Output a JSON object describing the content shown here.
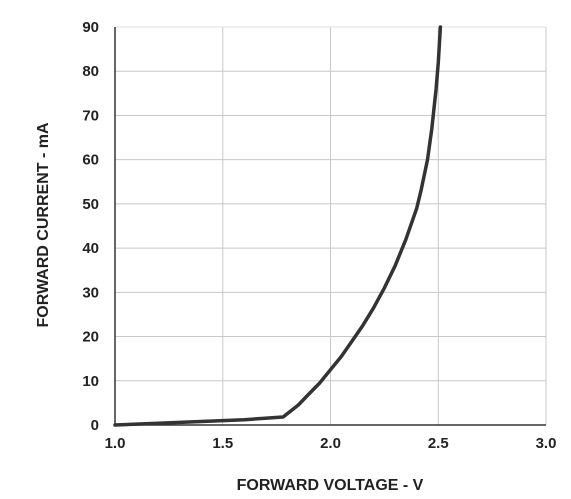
{
  "chart_data": {
    "type": "line",
    "title": "",
    "xlabel": "FORWARD VOLTAGE - V",
    "ylabel": "FORWARD CURRENT - mA",
    "xlim": [
      1.0,
      3.0
    ],
    "ylim": [
      0,
      90
    ],
    "x_ticks": [
      "1.0",
      "1.5",
      "2.0",
      "2.5",
      "3.0"
    ],
    "y_ticks": [
      "0",
      "10",
      "20",
      "30",
      "40",
      "50",
      "60",
      "70",
      "80",
      "90"
    ],
    "grid": true,
    "legend": "none",
    "line_color": "#333333",
    "grid_color": "#c8c8c8",
    "series": [
      {
        "x": [
          1.0,
          1.2,
          1.4,
          1.6,
          1.78,
          1.85,
          1.9,
          1.95,
          2.0,
          2.05,
          2.1,
          2.15,
          2.2,
          2.25,
          2.3,
          2.35,
          2.4,
          2.42,
          2.45,
          2.47,
          2.49,
          2.5,
          2.51
        ],
        "y": [
          0,
          0.4,
          0.8,
          1.2,
          1.8,
          4.5,
          7,
          9.5,
          12.5,
          15.5,
          19,
          22.5,
          26.5,
          31,
          36,
          42,
          49,
          53,
          60,
          67,
          76,
          82,
          90
        ]
      }
    ]
  }
}
